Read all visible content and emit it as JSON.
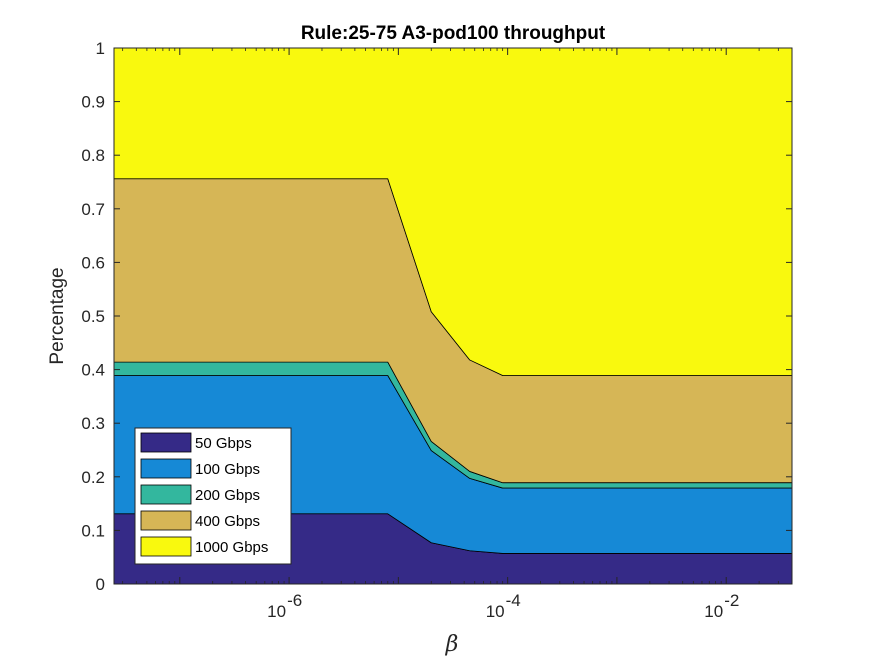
{
  "chart_data": {
    "type": "area",
    "title": "Rule:25-75 A3-pod100 throughput",
    "xlabel": "β",
    "ylabel": "Percentage",
    "xscale": "log",
    "xlim": [
      2.5e-08,
      0.04
    ],
    "ylim": [
      0,
      1
    ],
    "xticks": [
      {
        "value": 1e-06,
        "base": "10",
        "exp": "-6"
      },
      {
        "value": 0.0001,
        "base": "10",
        "exp": "-4"
      },
      {
        "value": 0.01,
        "base": "10",
        "exp": "-2"
      }
    ],
    "yticks": [
      "0",
      "0.1",
      "0.2",
      "0.3",
      "0.4",
      "0.5",
      "0.6",
      "0.7",
      "0.8",
      "0.9",
      "1"
    ],
    "grid": false,
    "legend_position": "bottom-left",
    "x": [
      2.5e-08,
      8e-06,
      2e-05,
      4.5e-05,
      9e-05,
      0.04
    ],
    "series": [
      {
        "name": "50 Gbps",
        "color": "#352a87",
        "values": [
          0.131,
          0.131,
          0.077,
          0.062,
          0.057,
          0.057
        ]
      },
      {
        "name": "100 Gbps",
        "color": "#1689d6",
        "values": [
          0.258,
          0.258,
          0.172,
          0.135,
          0.122,
          0.122
        ]
      },
      {
        "name": "200 Gbps",
        "color": "#33b79e",
        "values": [
          0.025,
          0.025,
          0.017,
          0.013,
          0.01,
          0.01
        ]
      },
      {
        "name": "400 Gbps",
        "color": "#d6b656",
        "values": [
          0.342,
          0.342,
          0.242,
          0.208,
          0.2,
          0.2
        ]
      },
      {
        "name": "1000 Gbps",
        "color": "#f9f90e",
        "values": [
          0.244,
          0.244,
          0.492,
          0.582,
          0.611,
          0.611
        ]
      }
    ]
  }
}
